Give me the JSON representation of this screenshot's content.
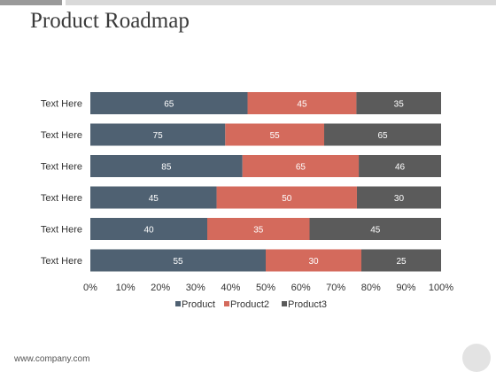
{
  "page": {
    "title": "Product Roadmap",
    "footer": "www.company.com"
  },
  "colors": {
    "product": "#4f6172",
    "product2": "#d46a5c",
    "product3": "#5b5b5b"
  },
  "chart_data": {
    "type": "bar",
    "orientation": "horizontal",
    "stacking": "percent",
    "categories": [
      "Text Here",
      "Text Here",
      "Text Here",
      "Text Here",
      "Text Here",
      "Text Here"
    ],
    "series": [
      {
        "name": "Product",
        "values": [
          65,
          75,
          85,
          45,
          40,
          55
        ]
      },
      {
        "name": "Product2",
        "values": [
          45,
          55,
          65,
          50,
          35,
          30
        ]
      },
      {
        "name": "Product3",
        "values": [
          35,
          65,
          46,
          30,
          45,
          25
        ]
      }
    ],
    "x_ticks": [
      "0%",
      "10%",
      "20%",
      "30%",
      "40%",
      "50%",
      "60%",
      "70%",
      "80%",
      "90%",
      "100%"
    ],
    "xlim": [
      0,
      100
    ],
    "legend": "bottom",
    "grid": false
  }
}
